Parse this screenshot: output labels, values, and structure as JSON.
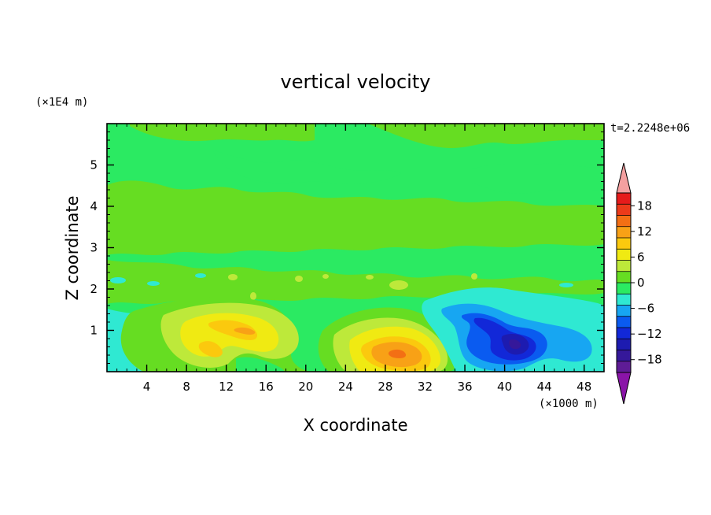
{
  "chart_data": {
    "type": "heatmap",
    "title": "vertical velocity",
    "xlabel": "X coordinate",
    "ylabel": "Z coordinate",
    "x_unit": "(×1000 m)",
    "y_unit": "(×1E4 m)",
    "time_label": "t=2.2248e+06",
    "xlim": [
      0,
      50
    ],
    "ylim": [
      0,
      6
    ],
    "x_ticks": [
      4,
      8,
      12,
      16,
      20,
      24,
      28,
      32,
      36,
      40,
      44,
      48
    ],
    "y_ticks": [
      1,
      2,
      3,
      4,
      5
    ],
    "colorbar": {
      "labels": [
        18,
        12,
        6,
        0,
        -6,
        -12,
        -18
      ],
      "levels_top_to_bottom": [
        21,
        18,
        15,
        12,
        9,
        6,
        3,
        0,
        -3,
        -6,
        -9,
        -12,
        -15,
        -18,
        -21
      ],
      "colors_top_to_bottom": [
        "#e61b1b",
        "#ec3a1a",
        "#f36f14",
        "#f8a116",
        "#fbc90e",
        "#f0ea12",
        "#bde93a",
        "#66dd22",
        "#2bea62",
        "#2fe9d2",
        "#17a6f2",
        "#0a5bf0",
        "#1228d8",
        "#1d1bb0",
        "#35189a",
        "#5f1c96"
      ],
      "over_color": "#f4a0a0",
      "under_color": "#8a14a8"
    },
    "background_value_color": "#2bea62",
    "features": [
      {
        "name": "updraft",
        "x": 13,
        "z": 0.95,
        "peak": 10
      },
      {
        "name": "updraft",
        "x": 10,
        "z": 0.5,
        "peak": 8
      },
      {
        "name": "updraft",
        "x": 29.5,
        "z": 0.5,
        "peak": 14
      },
      {
        "name": "downdraft",
        "x": 41,
        "z": 0.7,
        "peak": -18
      },
      {
        "name": "downdraft",
        "x": 46,
        "z": 0.8,
        "peak": -8
      }
    ]
  }
}
